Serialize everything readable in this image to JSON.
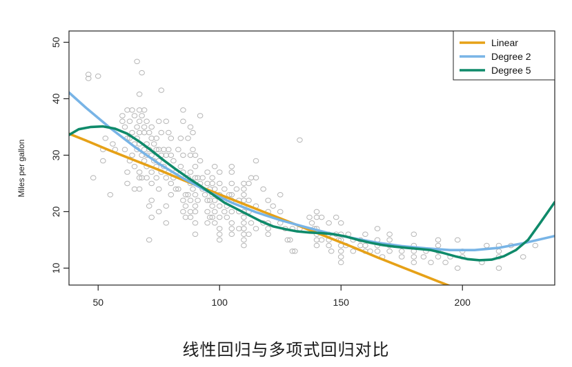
{
  "chart_data": {
    "type": "scatter",
    "title": "",
    "xlabel": "",
    "ylabel": "Miles per gallon",
    "xlim": [
      38,
      238
    ],
    "ylim": [
      7,
      52
    ],
    "x_ticks": [
      50,
      100,
      150,
      200
    ],
    "y_ticks": [
      10,
      20,
      30,
      40,
      50
    ],
    "grid": false,
    "legend": {
      "placement": "top-right",
      "entries": [
        {
          "name": "Linear",
          "color": "#e6a117"
        },
        {
          "name": "Degree 2",
          "color": "#78b4e6"
        },
        {
          "name": "Degree 5",
          "color": "#0f8a6a"
        }
      ]
    },
    "points_color": "#b4b4b4",
    "points": [
      [
        46,
        43.6
      ],
      [
        46,
        44.3
      ],
      [
        50,
        44
      ],
      [
        48,
        26
      ],
      [
        52,
        29
      ],
      [
        52,
        31
      ],
      [
        53,
        33
      ],
      [
        55,
        23
      ],
      [
        56,
        32
      ],
      [
        57,
        31
      ],
      [
        60,
        37
      ],
      [
        60,
        36
      ],
      [
        61,
        35
      ],
      [
        61,
        31
      ],
      [
        62,
        38
      ],
      [
        62,
        33
      ],
      [
        62,
        27
      ],
      [
        62,
        25
      ],
      [
        63,
        36
      ],
      [
        63,
        33
      ],
      [
        63,
        29
      ],
      [
        64,
        38
      ],
      [
        64,
        34
      ],
      [
        64,
        30
      ],
      [
        65,
        37
      ],
      [
        65,
        32
      ],
      [
        65,
        28
      ],
      [
        65,
        24
      ],
      [
        66,
        46.6
      ],
      [
        66,
        35
      ],
      [
        66,
        33
      ],
      [
        66,
        31
      ],
      [
        67,
        40.8
      ],
      [
        67,
        38
      ],
      [
        67,
        36
      ],
      [
        67,
        34
      ],
      [
        67,
        32
      ],
      [
        67,
        27
      ],
      [
        67,
        26
      ],
      [
        67,
        24
      ],
      [
        68,
        44.6
      ],
      [
        68,
        37
      ],
      [
        68,
        30
      ],
      [
        68,
        26
      ],
      [
        69,
        38
      ],
      [
        69,
        35
      ],
      [
        69,
        34
      ],
      [
        69,
        31
      ],
      [
        69,
        29
      ],
      [
        70,
        36
      ],
      [
        70,
        32
      ],
      [
        70,
        30
      ],
      [
        70,
        28
      ],
      [
        70,
        26
      ],
      [
        71,
        34
      ],
      [
        71,
        31
      ],
      [
        71,
        21
      ],
      [
        71,
        15
      ],
      [
        72,
        35
      ],
      [
        72,
        33
      ],
      [
        72,
        30
      ],
      [
        72,
        27
      ],
      [
        72,
        25
      ],
      [
        72,
        22
      ],
      [
        72,
        19
      ],
      [
        73,
        32
      ],
      [
        73,
        29
      ],
      [
        74,
        33
      ],
      [
        74,
        31
      ],
      [
        74,
        28
      ],
      [
        74,
        26
      ],
      [
        75,
        36
      ],
      [
        75,
        31
      ],
      [
        75,
        29
      ],
      [
        75,
        24
      ],
      [
        75,
        20
      ],
      [
        76,
        41.5
      ],
      [
        76,
        34
      ],
      [
        76,
        30
      ],
      [
        76,
        27
      ],
      [
        77,
        31
      ],
      [
        77,
        28
      ],
      [
        78,
        36
      ],
      [
        78,
        30
      ],
      [
        78,
        26
      ],
      [
        78,
        21
      ],
      [
        78,
        18
      ],
      [
        79,
        34
      ],
      [
        79,
        31
      ],
      [
        79,
        27
      ],
      [
        80,
        33
      ],
      [
        80,
        30
      ],
      [
        80,
        25
      ],
      [
        80,
        23
      ],
      [
        81,
        29
      ],
      [
        81,
        26
      ],
      [
        82,
        27
      ],
      [
        82,
        24
      ],
      [
        83,
        31
      ],
      [
        83,
        24
      ],
      [
        84,
        33
      ],
      [
        84,
        28
      ],
      [
        85,
        38
      ],
      [
        85,
        36
      ],
      [
        85,
        30
      ],
      [
        85,
        27
      ],
      [
        85,
        22
      ],
      [
        85,
        20
      ],
      [
        86,
        26
      ],
      [
        86,
        23
      ],
      [
        86,
        21
      ],
      [
        86,
        19
      ],
      [
        87,
        33
      ],
      [
        87,
        26
      ],
      [
        87,
        23
      ],
      [
        88,
        35
      ],
      [
        88,
        30
      ],
      [
        88,
        27
      ],
      [
        88,
        25
      ],
      [
        88,
        22
      ],
      [
        88,
        20
      ],
      [
        88,
        19
      ],
      [
        89,
        34
      ],
      [
        89,
        31
      ],
      [
        89,
        24
      ],
      [
        90,
        30
      ],
      [
        90,
        28
      ],
      [
        90,
        26
      ],
      [
        90,
        23
      ],
      [
        90,
        21
      ],
      [
        90,
        20
      ],
      [
        90,
        18
      ],
      [
        90,
        16
      ],
      [
        91,
        26
      ],
      [
        91,
        22
      ],
      [
        92,
        37
      ],
      [
        92,
        29
      ],
      [
        92,
        25
      ],
      [
        93,
        26
      ],
      [
        93,
        24
      ],
      [
        94,
        23
      ],
      [
        95,
        27
      ],
      [
        95,
        25
      ],
      [
        95,
        22
      ],
      [
        95,
        20
      ],
      [
        95,
        18
      ],
      [
        96,
        24
      ],
      [
        96,
        22
      ],
      [
        96,
        19
      ],
      [
        97,
        26
      ],
      [
        97,
        25
      ],
      [
        97,
        23
      ],
      [
        97,
        21
      ],
      [
        97,
        19
      ],
      [
        98,
        28
      ],
      [
        98,
        24
      ],
      [
        98,
        22
      ],
      [
        98,
        20
      ],
      [
        98,
        18
      ],
      [
        100,
        27
      ],
      [
        100,
        25
      ],
      [
        100,
        23
      ],
      [
        100,
        21
      ],
      [
        100,
        19
      ],
      [
        100,
        17
      ],
      [
        100,
        16
      ],
      [
        100,
        15
      ],
      [
        102,
        24
      ],
      [
        102,
        22
      ],
      [
        102,
        20
      ],
      [
        103,
        21
      ],
      [
        103,
        19
      ],
      [
        104,
        23
      ],
      [
        105,
        28
      ],
      [
        105,
        27
      ],
      [
        105,
        25
      ],
      [
        105,
        23
      ],
      [
        105,
        22
      ],
      [
        105,
        20
      ],
      [
        105,
        18
      ],
      [
        105,
        17
      ],
      [
        105,
        16
      ],
      [
        107,
        24
      ],
      [
        108,
        22
      ],
      [
        108,
        20
      ],
      [
        108,
        17
      ],
      [
        110,
        25
      ],
      [
        110,
        24
      ],
      [
        110,
        23
      ],
      [
        110,
        22
      ],
      [
        110,
        21
      ],
      [
        110,
        20
      ],
      [
        110,
        19
      ],
      [
        110,
        18
      ],
      [
        110,
        17
      ],
      [
        110,
        16
      ],
      [
        110,
        15
      ],
      [
        110,
        14
      ],
      [
        112,
        25
      ],
      [
        112,
        22
      ],
      [
        112,
        20
      ],
      [
        112,
        16
      ],
      [
        113,
        26
      ],
      [
        113,
        18
      ],
      [
        115,
        29
      ],
      [
        115,
        26
      ],
      [
        115,
        21
      ],
      [
        115,
        17
      ],
      [
        118,
        24
      ],
      [
        118,
        18
      ],
      [
        120,
        22
      ],
      [
        120,
        20
      ],
      [
        120,
        18
      ],
      [
        120,
        17
      ],
      [
        120,
        16
      ],
      [
        122,
        21
      ],
      [
        125,
        23
      ],
      [
        125,
        20
      ],
      [
        125,
        18
      ],
      [
        127,
        17
      ],
      [
        128,
        15
      ],
      [
        129,
        15
      ],
      [
        130,
        17
      ],
      [
        130,
        13
      ],
      [
        131,
        13
      ],
      [
        133,
        32.7
      ],
      [
        133,
        17
      ],
      [
        137,
        19
      ],
      [
        138,
        18
      ],
      [
        139,
        17
      ],
      [
        140,
        20
      ],
      [
        140,
        19
      ],
      [
        140,
        17
      ],
      [
        140,
        16
      ],
      [
        140,
        15
      ],
      [
        140,
        14
      ],
      [
        142,
        19
      ],
      [
        142,
        15
      ],
      [
        145,
        18
      ],
      [
        145,
        16
      ],
      [
        145,
        15
      ],
      [
        145,
        14
      ],
      [
        146,
        13
      ],
      [
        148,
        19
      ],
      [
        148,
        16
      ],
      [
        149,
        15
      ],
      [
        150,
        18
      ],
      [
        150,
        16
      ],
      [
        150,
        15
      ],
      [
        150,
        14
      ],
      [
        150,
        13
      ],
      [
        150,
        12
      ],
      [
        150,
        11
      ],
      [
        152,
        14
      ],
      [
        153,
        16
      ],
      [
        155,
        15
      ],
      [
        155,
        13
      ],
      [
        158,
        15
      ],
      [
        158,
        14
      ],
      [
        160,
        16
      ],
      [
        160,
        14
      ],
      [
        160,
        13
      ],
      [
        162,
        13
      ],
      [
        165,
        17
      ],
      [
        165,
        15
      ],
      [
        165,
        14
      ],
      [
        165,
        13
      ],
      [
        167,
        12
      ],
      [
        170,
        16
      ],
      [
        170,
        15
      ],
      [
        170,
        14
      ],
      [
        170,
        13
      ],
      [
        175,
        13
      ],
      [
        175,
        12
      ],
      [
        180,
        16
      ],
      [
        180,
        14
      ],
      [
        180,
        13
      ],
      [
        180,
        12
      ],
      [
        180,
        11
      ],
      [
        184,
        12
      ],
      [
        185,
        13
      ],
      [
        187,
        11
      ],
      [
        190,
        15
      ],
      [
        190,
        14
      ],
      [
        190,
        13
      ],
      [
        190,
        12
      ],
      [
        193,
        11
      ],
      [
        195,
        12
      ],
      [
        198,
        15
      ],
      [
        198,
        10
      ],
      [
        200,
        13
      ],
      [
        200,
        12
      ],
      [
        208,
        11
      ],
      [
        210,
        14
      ],
      [
        215,
        14
      ],
      [
        215,
        13
      ],
      [
        215,
        12
      ],
      [
        215,
        10
      ],
      [
        220,
        14
      ],
      [
        225,
        12
      ],
      [
        230,
        14
      ]
    ],
    "fits": [
      {
        "name": "Linear",
        "color": "#e6a117",
        "x": [
          38,
          45,
          55,
          65,
          75,
          85,
          95,
          105,
          115,
          125,
          135,
          145,
          155,
          165,
          175,
          185,
          195,
          205,
          214
        ],
        "y": [
          33.8,
          32.6,
          30.8,
          29.1,
          27.4,
          25.6,
          23.9,
          22.2,
          20.5,
          18.8,
          17.1,
          15.4,
          13.7,
          11.9,
          10.2,
          8.5,
          6.8,
          5.1,
          3.5
        ]
      },
      {
        "name": "Degree 2",
        "color": "#78b4e6",
        "x": [
          38,
          45,
          55,
          65,
          75,
          85,
          95,
          105,
          115,
          125,
          135,
          145,
          155,
          165,
          175,
          185,
          195,
          205,
          215,
          225,
          238
        ],
        "y": [
          41.1,
          38.4,
          34.8,
          31.5,
          28.5,
          25.9,
          23.6,
          21.6,
          19.9,
          18.5,
          17.3,
          16.2,
          15.3,
          14.5,
          13.9,
          13.5,
          13.2,
          13.2,
          13.6,
          14.4,
          15.7
        ]
      },
      {
        "name": "Degree 5",
        "color": "#0f8a6a",
        "x": [
          38,
          42,
          47,
          52,
          57,
          62,
          67,
          72,
          77,
          82,
          87,
          92,
          97,
          102,
          107,
          112,
          117,
          122,
          127,
          132,
          137,
          142,
          147,
          152,
          157,
          162,
          167,
          172,
          177,
          182,
          187,
          192,
          197,
          202,
          207,
          212,
          217,
          222,
          227,
          232,
          238
        ],
        "y": [
          33.6,
          34.6,
          35.0,
          35.1,
          34.7,
          33.8,
          32.4,
          30.8,
          29.1,
          27.5,
          26.0,
          24.6,
          23.1,
          21.6,
          20.5,
          19.4,
          18.3,
          17.4,
          16.9,
          16.5,
          16.3,
          16.2,
          16.0,
          15.6,
          15.0,
          14.5,
          14.1,
          13.8,
          13.6,
          13.4,
          13.2,
          12.7,
          12.1,
          11.6,
          11.4,
          11.5,
          12.1,
          13.2,
          15.0,
          18.0,
          21.7
        ]
      }
    ]
  },
  "caption": "线性回归与多项式回归对比"
}
